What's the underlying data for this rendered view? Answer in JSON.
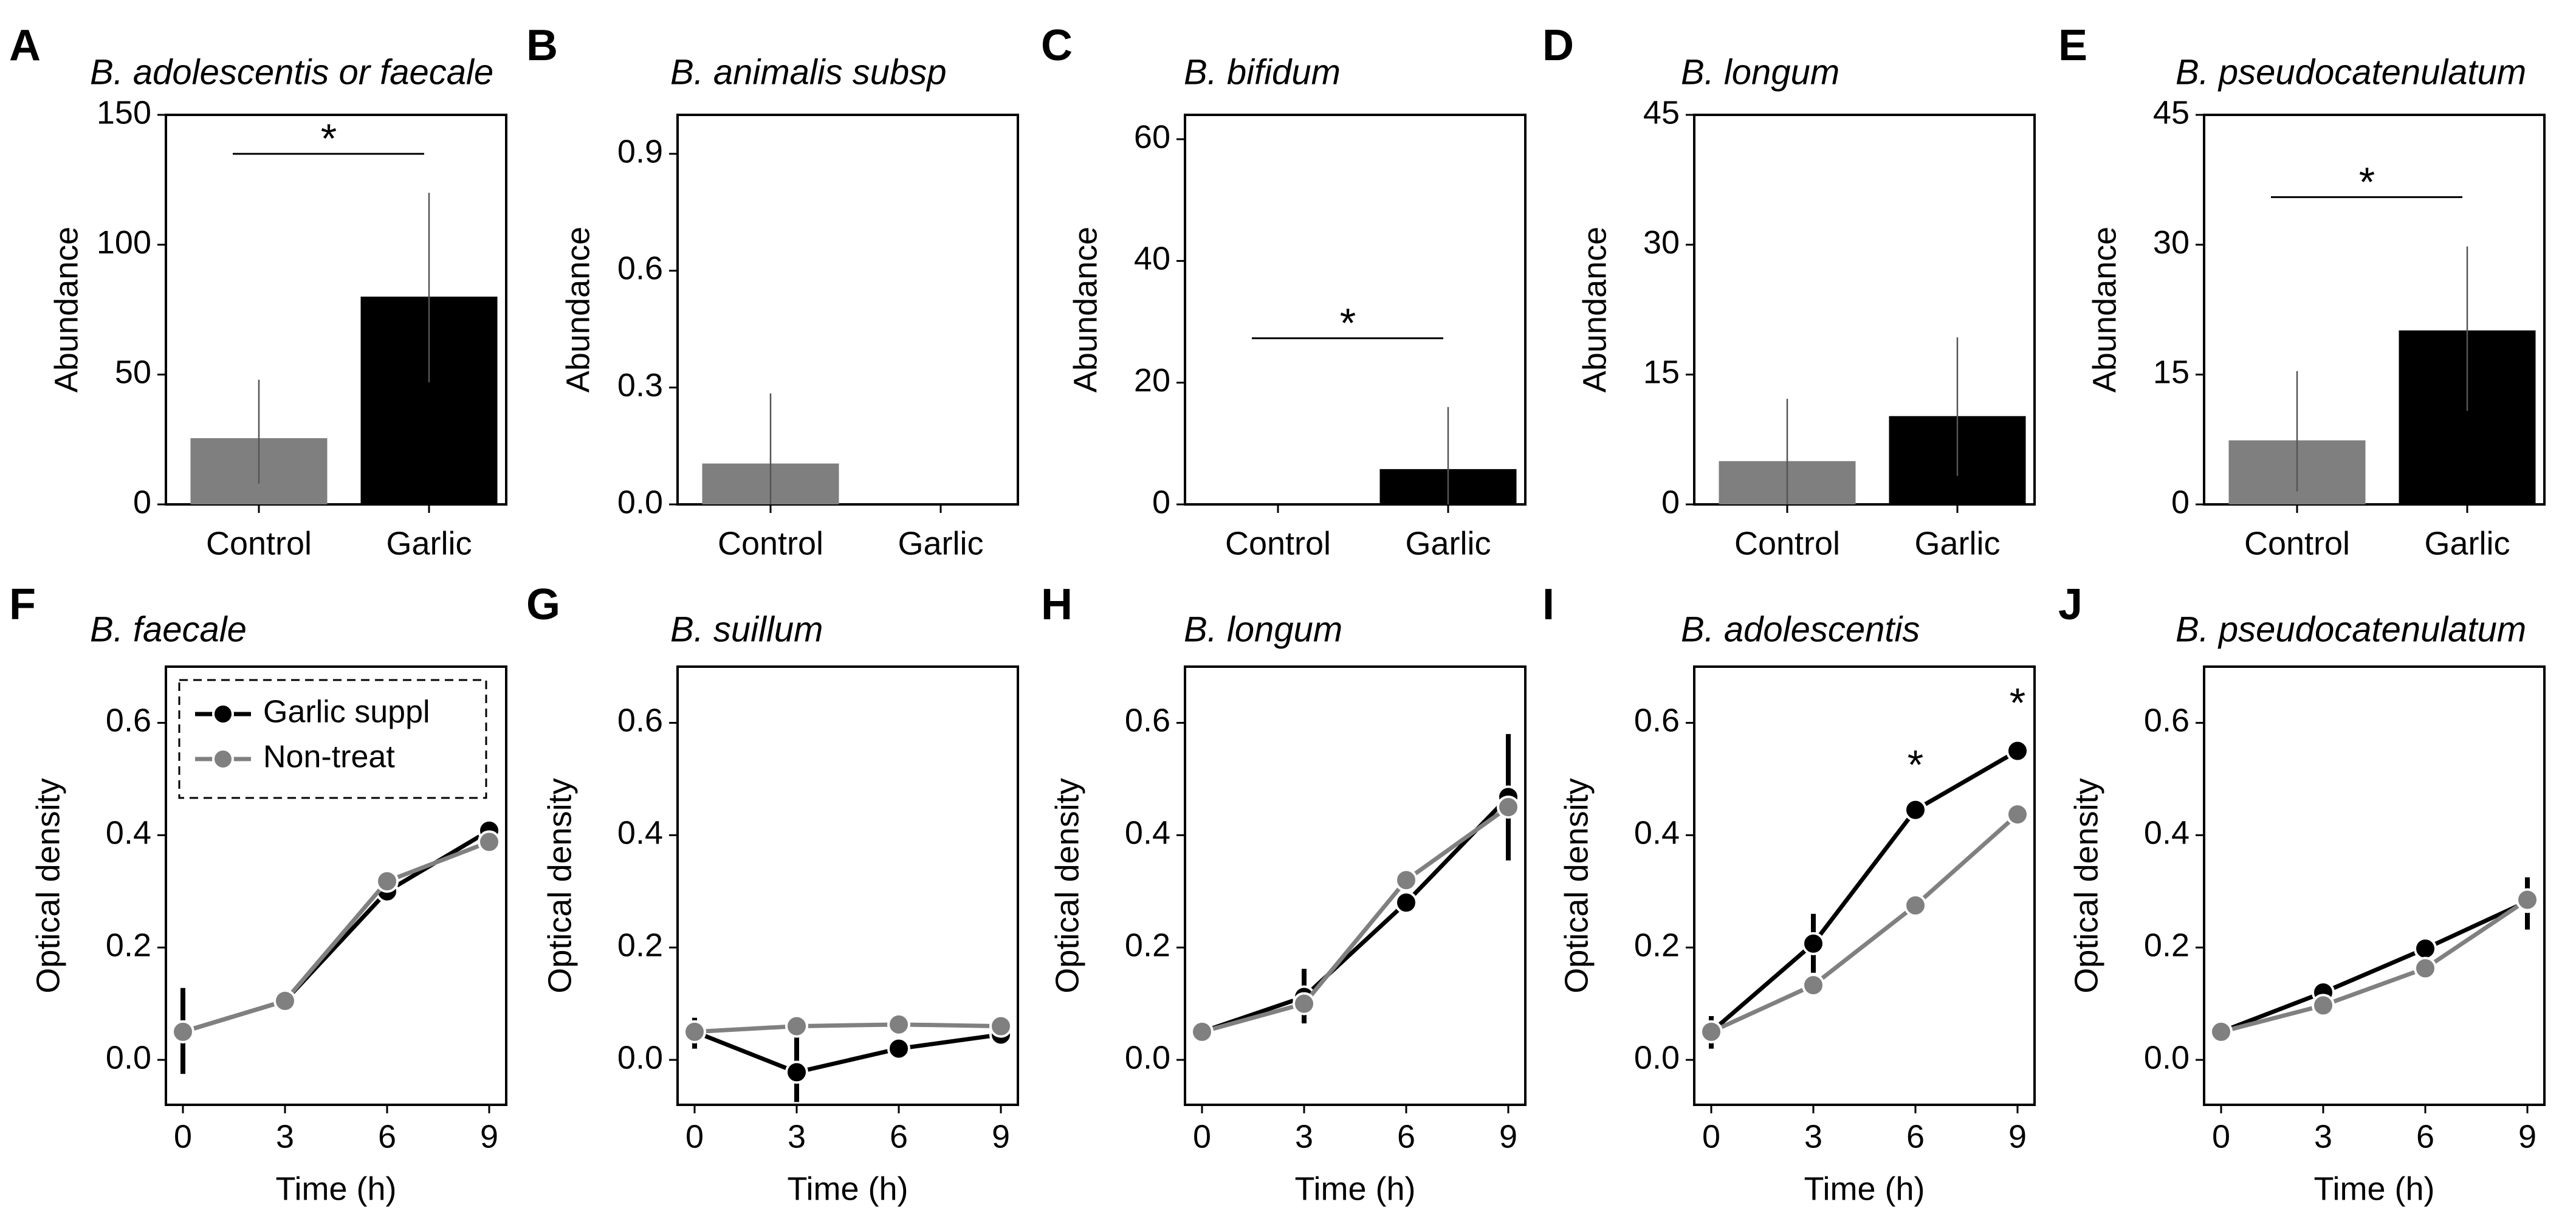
{
  "colors": {
    "control": "#7f7f7f",
    "garlic": "#000000",
    "garlic_series": "#000000",
    "non_treat_series": "#808080",
    "axis": "#000000"
  },
  "legend": {
    "items": [
      {
        "label": "Garlic suppl",
        "color": "#000000"
      },
      {
        "label": "Non-treat",
        "color": "#808080"
      }
    ],
    "style": "dashed-frame",
    "panel": "F",
    "placement": "top-left"
  },
  "chart_data": [
    {
      "letter": "A",
      "type": "bar",
      "title": "B. adolescentis or faecale",
      "xlabel": "",
      "ylabel": "Abundance",
      "categories": [
        "Control",
        "Garlic"
      ],
      "values": [
        25.5,
        80
      ],
      "errors": [
        [
          8,
          48
        ],
        [
          47,
          120
        ]
      ],
      "ylim": [
        0,
        150
      ],
      "yticks": [
        "0",
        "50",
        "100",
        "150"
      ],
      "ytick_values": [
        0,
        50,
        100,
        150
      ],
      "significance": {
        "label": "*",
        "between": [
          "Control",
          "Garlic"
        ],
        "y": 135
      }
    },
    {
      "letter": "B",
      "type": "bar",
      "title": "B. animalis subsp",
      "xlabel": "",
      "ylabel": "Abundance",
      "categories": [
        "Control",
        "Garlic"
      ],
      "values": [
        0.105,
        0
      ],
      "errors": [
        [
          0,
          0.285
        ],
        [
          0,
          0
        ]
      ],
      "ylim": [
        0,
        1.0
      ],
      "yticks": [
        "0.0",
        "0.3",
        "0.6",
        "0.9"
      ],
      "ytick_values": [
        0,
        0.3,
        0.6,
        0.9
      ],
      "significance": null
    },
    {
      "letter": "C",
      "type": "bar",
      "title": "B. bifidum",
      "xlabel": "",
      "ylabel": "Abundance",
      "categories": [
        "Control",
        "Garlic"
      ],
      "values": [
        0,
        5.8
      ],
      "errors": [
        [
          0,
          0
        ],
        [
          0,
          16
        ]
      ],
      "ylim": [
        0,
        64
      ],
      "yticks": [
        "0",
        "20",
        "40",
        "60"
      ],
      "ytick_values": [
        0,
        20,
        40,
        60
      ],
      "significance": {
        "label": "*",
        "between": [
          "Control",
          "Garlic"
        ],
        "y": 27.3
      }
    },
    {
      "letter": "D",
      "type": "bar",
      "title": "B. longum",
      "xlabel": "",
      "ylabel": "Abundance",
      "categories": [
        "Control",
        "Garlic"
      ],
      "values": [
        5,
        10.2
      ],
      "errors": [
        [
          0,
          12.2
        ],
        [
          3.3,
          19.3
        ]
      ],
      "ylim": [
        0,
        45
      ],
      "yticks": [
        "0",
        "15",
        "30",
        "45"
      ],
      "ytick_values": [
        0,
        15,
        30,
        45
      ],
      "significance": null
    },
    {
      "letter": "E",
      "type": "bar",
      "title": "B. pseudocatenulatum",
      "xlabel": "",
      "ylabel": "Abundance",
      "categories": [
        "Control",
        "Garlic"
      ],
      "values": [
        7.4,
        20.1
      ],
      "errors": [
        [
          1.5,
          15.4
        ],
        [
          10.8,
          29.8
        ]
      ],
      "ylim": [
        0,
        45
      ],
      "yticks": [
        "0",
        "15",
        "30",
        "45"
      ],
      "ytick_values": [
        0,
        15,
        30,
        45
      ],
      "significance": {
        "label": "*",
        "between": [
          "Control",
          "Garlic"
        ],
        "y": 35.5
      }
    },
    {
      "letter": "F",
      "type": "line",
      "title": "B. faecale",
      "xlabel": "Time (h)",
      "ylabel": "Optical density",
      "x": [
        0,
        3,
        6,
        9
      ],
      "xticks": [
        "0",
        "3",
        "6",
        "9"
      ],
      "xlim": [
        -0.5,
        9.5
      ],
      "ylim": [
        -0.08,
        0.7
      ],
      "yticks": [
        "0.0",
        "0.2",
        "0.4",
        "0.6"
      ],
      "ytick_values": [
        0,
        0.2,
        0.4,
        0.6
      ],
      "series": [
        {
          "name": "Garlic suppl",
          "values": [
            0.05,
            0.105,
            0.3,
            0.408
          ],
          "err_low": [
            -0.025,
            0.1,
            0.29,
            0.4
          ],
          "err_high": [
            0.128,
            0.11,
            0.315,
            0.415
          ]
        },
        {
          "name": "Non-treat",
          "values": [
            0.05,
            0.105,
            0.318,
            0.388
          ],
          "err_low": [
            0.045,
            0.1,
            0.31,
            0.38
          ],
          "err_high": [
            0.055,
            0.11,
            0.325,
            0.395
          ]
        }
      ],
      "stars": []
    },
    {
      "letter": "G",
      "type": "line",
      "title": "B. suillum",
      "xlabel": "Time (h)",
      "ylabel": "Optical density",
      "x": [
        0,
        3,
        6,
        9
      ],
      "xticks": [
        "0",
        "3",
        "6",
        "9"
      ],
      "xlim": [
        -0.5,
        9.5
      ],
      "ylim": [
        -0.08,
        0.7
      ],
      "yticks": [
        "0.0",
        "0.2",
        "0.4",
        "0.6"
      ],
      "ytick_values": [
        0,
        0.2,
        0.4,
        0.6
      ],
      "series": [
        {
          "name": "Garlic suppl",
          "values": [
            0.05,
            -0.022,
            0.02,
            0.045
          ],
          "err_low": [
            0.02,
            -0.075,
            0.012,
            0.035
          ],
          "err_high": [
            0.075,
            0.04,
            0.028,
            0.055
          ]
        },
        {
          "name": "Non-treat",
          "values": [
            0.05,
            0.06,
            0.063,
            0.06
          ],
          "err_low": [
            0.045,
            0.055,
            0.058,
            0.055
          ],
          "err_high": [
            0.055,
            0.065,
            0.068,
            0.065
          ]
        }
      ],
      "stars": []
    },
    {
      "letter": "H",
      "type": "line",
      "title": "B. longum",
      "xlabel": "Time (h)",
      "ylabel": "Optical density",
      "x": [
        0,
        3,
        6,
        9
      ],
      "xticks": [
        "0",
        "3",
        "6",
        "9"
      ],
      "xlim": [
        -0.5,
        9.5
      ],
      "ylim": [
        -0.08,
        0.7
      ],
      "yticks": [
        "0.0",
        "0.2",
        "0.4",
        "0.6"
      ],
      "ytick_values": [
        0,
        0.2,
        0.4,
        0.6
      ],
      "series": [
        {
          "name": "Garlic suppl",
          "values": [
            0.05,
            0.112,
            0.28,
            0.468
          ],
          "err_low": [
            0.045,
            0.065,
            0.27,
            0.355
          ],
          "err_high": [
            0.055,
            0.162,
            0.29,
            0.58
          ]
        },
        {
          "name": "Non-treat",
          "values": [
            0.05,
            0.1,
            0.32,
            0.45
          ],
          "err_low": [
            0.045,
            0.09,
            0.31,
            0.44
          ],
          "err_high": [
            0.055,
            0.11,
            0.33,
            0.46
          ]
        }
      ],
      "stars": []
    },
    {
      "letter": "I",
      "type": "line",
      "title": "B. adolescentis",
      "xlabel": "Time (h)",
      "ylabel": "Optical density",
      "x": [
        0,
        3,
        6,
        9
      ],
      "xticks": [
        "0",
        "3",
        "6",
        "9"
      ],
      "xlim": [
        -0.5,
        9.5
      ],
      "ylim": [
        -0.08,
        0.7
      ],
      "yticks": [
        "0.0",
        "0.2",
        "0.4",
        "0.6"
      ],
      "ytick_values": [
        0,
        0.2,
        0.4,
        0.6
      ],
      "series": [
        {
          "name": "Garlic suppl",
          "values": [
            0.05,
            0.207,
            0.445,
            0.55
          ],
          "err_low": [
            0.02,
            0.155,
            0.435,
            0.535
          ],
          "err_high": [
            0.078,
            0.26,
            0.455,
            0.565
          ]
        },
        {
          "name": "Non-treat",
          "values": [
            0.05,
            0.133,
            0.275,
            0.437
          ],
          "err_low": [
            0.045,
            0.128,
            0.265,
            0.43
          ],
          "err_high": [
            0.055,
            0.138,
            0.285,
            0.445
          ]
        }
      ],
      "stars": [
        {
          "x": 6,
          "y": 0.52,
          "label": "*"
        },
        {
          "x": 9,
          "y": 0.63,
          "label": "*"
        }
      ]
    },
    {
      "letter": "J",
      "type": "line",
      "title": "B. pseudocatenulatum",
      "xlabel": "Time (h)",
      "ylabel": "Optical density",
      "x": [
        0,
        3,
        6,
        9
      ],
      "xticks": [
        "0",
        "3",
        "6",
        "9"
      ],
      "xlim": [
        -0.5,
        9.5
      ],
      "ylim": [
        -0.08,
        0.7
      ],
      "yticks": [
        "0.0",
        "0.2",
        "0.4",
        "0.6"
      ],
      "ytick_values": [
        0,
        0.2,
        0.4,
        0.6
      ],
      "series": [
        {
          "name": "Garlic suppl",
          "values": [
            0.05,
            0.12,
            0.198,
            0.282
          ],
          "err_low": [
            0.045,
            0.105,
            0.19,
            0.232
          ],
          "err_high": [
            0.055,
            0.137,
            0.206,
            0.325
          ]
        },
        {
          "name": "Non-treat",
          "values": [
            0.05,
            0.097,
            0.163,
            0.285
          ],
          "err_low": [
            0.045,
            0.09,
            0.155,
            0.275
          ],
          "err_high": [
            0.055,
            0.104,
            0.171,
            0.295
          ]
        }
      ],
      "stars": []
    }
  ]
}
